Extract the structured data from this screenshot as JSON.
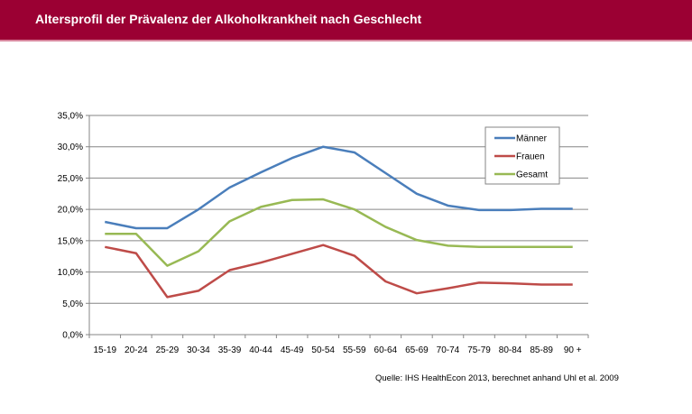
{
  "header": {
    "title": "Altersprofil  der Prävalenz der Alkoholkrankheit nach Geschlecht"
  },
  "source": "Quelle: IHS HealthEcon 2013, berechnet anhand Uhl et al. 2009",
  "chart_data": {
    "type": "line",
    "title": "Altersprofil  der Prävalenz der Alkoholkrankheit nach Geschlecht",
    "xlabel": "",
    "ylabel": "",
    "categories": [
      "15-19",
      "20-24",
      "25-29",
      "30-34",
      "35-39",
      "40-44",
      "45-49",
      "50-54",
      "55-59",
      "60-64",
      "65-69",
      "70-74",
      "75-79",
      "80-84",
      "85-89",
      "90 +"
    ],
    "ylim": [
      0,
      35
    ],
    "yticks": [
      0,
      5,
      10,
      15,
      20,
      25,
      30,
      35
    ],
    "ytick_labels": [
      "0,0%",
      "5,0%",
      "10,0%",
      "15,0%",
      "20,0%",
      "25,0%",
      "30,0%",
      "35,0%"
    ],
    "grid": true,
    "legend": "top-right",
    "series": [
      {
        "name": "Männer",
        "color": "#4a7ebb",
        "values": [
          18.0,
          17.0,
          17.0,
          20.0,
          23.5,
          25.9,
          28.2,
          30.0,
          29.1,
          25.8,
          22.5,
          20.6,
          19.9,
          19.9,
          20.1,
          20.1
        ]
      },
      {
        "name": "Frauen",
        "color": "#be4b48",
        "values": [
          14.0,
          13.0,
          6.0,
          7.0,
          10.3,
          11.5,
          12.9,
          14.3,
          12.6,
          8.5,
          6.6,
          7.4,
          8.3,
          8.2,
          8.0,
          8.0
        ]
      },
      {
        "name": "Gesamt",
        "color": "#98b954",
        "values": [
          16.1,
          16.1,
          11.0,
          13.3,
          18.1,
          20.4,
          21.5,
          21.6,
          20.0,
          17.2,
          15.1,
          14.2,
          14.0,
          14.0,
          14.0,
          14.0
        ]
      }
    ]
  }
}
